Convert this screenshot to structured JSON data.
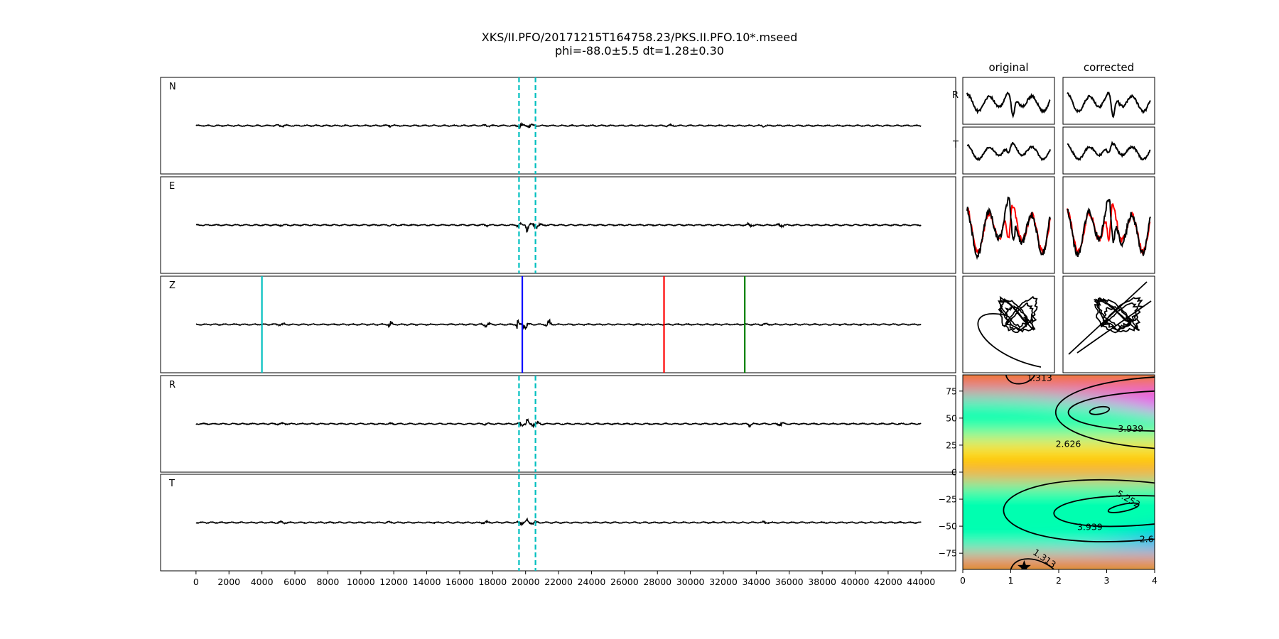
{
  "figure": {
    "title_line1": "XKS/II.PFO/20171215T164758.23/PKS.II.PFO.10*.mseed",
    "title_line2": "phi=-88.0±5.5 dt=1.28±0.30"
  },
  "chart_data": [
    {
      "type": "line",
      "kind": "seismogram-traces",
      "xlim": [
        -2150,
        46100
      ],
      "x_ticks": [
        0,
        2000,
        4000,
        6000,
        8000,
        10000,
        12000,
        14000,
        16000,
        18000,
        20000,
        22000,
        24000,
        26000,
        28000,
        30000,
        32000,
        34000,
        36000,
        38000,
        40000,
        42000,
        44000
      ],
      "x_range": [
        0,
        44000
      ],
      "window_lines": [
        19600,
        20600
      ],
      "window_color": "#00bfbf",
      "traces": [
        {
          "name": "N",
          "label": "N",
          "show_window": true,
          "bursts": [
            [
              5200,
              300,
              1.2
            ],
            [
              11800,
              250,
              0.8
            ],
            [
              17600,
              200,
              1.3
            ],
            [
              19700,
              150,
              3.5
            ],
            [
              20300,
              200,
              2.0
            ],
            [
              28700,
              200,
              1.1
            ],
            [
              34500,
              200,
              1.5
            ]
          ]
        },
        {
          "name": "E",
          "label": "E",
          "show_window": true,
          "bursts": [
            [
              5200,
              300,
              0.7
            ],
            [
              11800,
              250,
              0.6
            ],
            [
              17600,
              200,
              1.0
            ],
            [
              19600,
              120,
              4.0
            ],
            [
              20100,
              80,
              11.0
            ],
            [
              20600,
              300,
              3.5
            ],
            [
              33600,
              150,
              3.0
            ],
            [
              35500,
              200,
              2.2
            ]
          ]
        },
        {
          "name": "Z",
          "label": "Z",
          "show_window": false,
          "bursts": [
            [
              5200,
              300,
              0.8
            ],
            [
              11800,
              120,
              5.0
            ],
            [
              17600,
              200,
              3.0
            ],
            [
              19500,
              60,
              16.0
            ],
            [
              20000,
              200,
              6.0
            ],
            [
              21400,
              150,
              7.0
            ],
            [
              34500,
              200,
              1.2
            ]
          ]
        },
        {
          "name": "R",
          "label": "R",
          "show_window": true,
          "bursts": [
            [
              5200,
              300,
              0.7
            ],
            [
              11800,
              250,
              0.6
            ],
            [
              17600,
              200,
              1.0
            ],
            [
              19700,
              120,
              4.5
            ],
            [
              20100,
              80,
              9.0
            ],
            [
              20600,
              300,
              3.0
            ],
            [
              33600,
              150,
              3.5
            ],
            [
              35500,
              200,
              2.5
            ]
          ]
        },
        {
          "name": "T",
          "label": "T",
          "show_window": true,
          "bursts": [
            [
              5200,
              300,
              1.2
            ],
            [
              11800,
              250,
              0.8
            ],
            [
              17600,
              200,
              1.3
            ],
            [
              19700,
              150,
              3.0
            ],
            [
              20100,
              100,
              4.0
            ],
            [
              20500,
              200,
              2.0
            ],
            [
              34500,
              200,
              1.5
            ]
          ]
        }
      ],
      "phase_markers": [
        {
          "x": 4000,
          "color": "#00bfbf"
        },
        {
          "x": 19800,
          "color": "#0000ff"
        },
        {
          "x": 28400,
          "color": "#ff0000"
        },
        {
          "x": 33300,
          "color": "#008000"
        }
      ]
    },
    {
      "type": "line",
      "kind": "particle-motion-panels",
      "column_titles": [
        "original",
        "corrected"
      ],
      "row_labels": [
        "R",
        "T"
      ],
      "series_colors": {
        "R": "#000000",
        "T": "#ff0000"
      }
    },
    {
      "type": "heatmap",
      "kind": "error-surface",
      "xlabel": "",
      "ylabel": "",
      "xlim": [
        0,
        4
      ],
      "ylim": [
        -90,
        90
      ],
      "x_ticks": [
        0,
        1,
        2,
        3,
        4
      ],
      "y_ticks": [
        -75,
        -50,
        -25,
        0,
        25,
        50,
        75
      ],
      "contour_labels": [
        "1.313",
        "2.626",
        "3.939",
        "5.252",
        "2.626",
        "3.939",
        "5.252",
        "1.313"
      ],
      "best": {
        "dt": 1.28,
        "phi": -88.0
      },
      "colormap": "hsv"
    }
  ]
}
